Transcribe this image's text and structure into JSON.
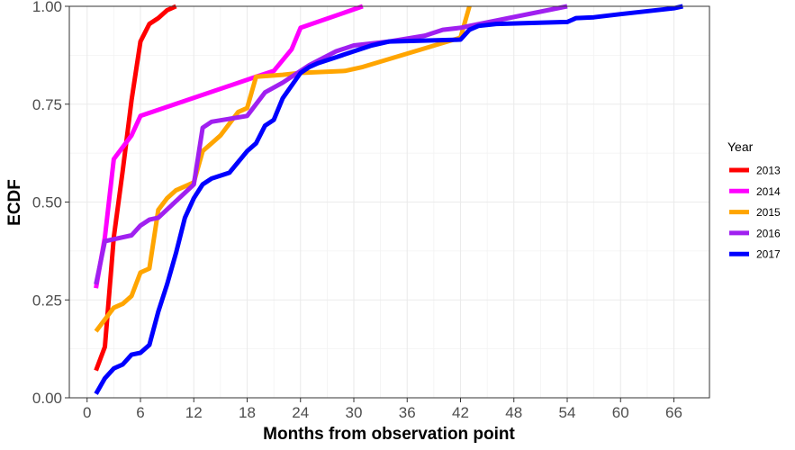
{
  "chart_data": {
    "type": "line",
    "title": "",
    "xlabel": "Months from observation point",
    "ylabel": "ECDF",
    "xlim": [
      -2,
      70
    ],
    "ylim": [
      0,
      1
    ],
    "x_ticks": [
      0,
      6,
      12,
      18,
      24,
      30,
      36,
      42,
      48,
      54,
      60,
      66
    ],
    "x_tick_labels": [
      "0",
      "6",
      "12",
      "18",
      "24",
      "30",
      "36",
      "42",
      "48",
      "54",
      "60",
      "66"
    ],
    "y_ticks": [
      0,
      0.25,
      0.5,
      0.75,
      1
    ],
    "y_tick_labels": [
      "0.00",
      "0.25",
      "0.50",
      "0.75",
      "1.00"
    ],
    "grid": true,
    "legend": {
      "title": "Year",
      "position": "right"
    },
    "series": [
      {
        "name": "2013",
        "color": "#ff0000",
        "points": [
          [
            1,
            0.07
          ],
          [
            2,
            0.13
          ],
          [
            3,
            0.41
          ],
          [
            4,
            0.58
          ],
          [
            5,
            0.76
          ],
          [
            6,
            0.91
          ],
          [
            7,
            0.955
          ],
          [
            8,
            0.97
          ],
          [
            9,
            0.99
          ],
          [
            10,
            1.0
          ]
        ]
      },
      {
        "name": "2014",
        "color": "#ff00ff",
        "points": [
          [
            1,
            0.28
          ],
          [
            2,
            0.41
          ],
          [
            3,
            0.61
          ],
          [
            5,
            0.67
          ],
          [
            6,
            0.72
          ],
          [
            19,
            0.82
          ],
          [
            21,
            0.835
          ],
          [
            23,
            0.89
          ],
          [
            24,
            0.945
          ],
          [
            31,
            1.0
          ]
        ]
      },
      {
        "name": "2015",
        "color": "#ffa500",
        "points": [
          [
            1,
            0.17
          ],
          [
            2,
            0.2
          ],
          [
            3,
            0.23
          ],
          [
            4,
            0.24
          ],
          [
            5,
            0.26
          ],
          [
            6,
            0.32
          ],
          [
            7,
            0.33
          ],
          [
            8,
            0.48
          ],
          [
            9,
            0.51
          ],
          [
            10,
            0.53
          ],
          [
            11,
            0.54
          ],
          [
            12,
            0.55
          ],
          [
            13,
            0.63
          ],
          [
            14,
            0.65
          ],
          [
            15,
            0.67
          ],
          [
            17,
            0.73
          ],
          [
            18,
            0.74
          ],
          [
            19,
            0.82
          ],
          [
            22,
            0.825
          ],
          [
            24,
            0.83
          ],
          [
            29,
            0.835
          ],
          [
            31,
            0.845
          ],
          [
            42,
            0.92
          ],
          [
            43,
            1.0
          ]
        ]
      },
      {
        "name": "2016",
        "color": "#a020f0",
        "points": [
          [
            1,
            0.29
          ],
          [
            2,
            0.4
          ],
          [
            5,
            0.415
          ],
          [
            6,
            0.44
          ],
          [
            7,
            0.455
          ],
          [
            8,
            0.46
          ],
          [
            12,
            0.545
          ],
          [
            13,
            0.69
          ],
          [
            14,
            0.705
          ],
          [
            18,
            0.72
          ],
          [
            20,
            0.78
          ],
          [
            22,
            0.805
          ],
          [
            25,
            0.85
          ],
          [
            28,
            0.885
          ],
          [
            30,
            0.9
          ],
          [
            34,
            0.91
          ],
          [
            38,
            0.925
          ],
          [
            40,
            0.94
          ],
          [
            42,
            0.945
          ],
          [
            43,
            0.95
          ],
          [
            54,
            1.0
          ]
        ]
      },
      {
        "name": "2017",
        "color": "#0000ff",
        "points": [
          [
            1,
            0.01
          ],
          [
            2,
            0.05
          ],
          [
            3,
            0.075
          ],
          [
            4,
            0.085
          ],
          [
            5,
            0.11
          ],
          [
            6,
            0.115
          ],
          [
            7,
            0.135
          ],
          [
            8,
            0.22
          ],
          [
            9,
            0.29
          ],
          [
            10,
            0.37
          ],
          [
            11,
            0.46
          ],
          [
            12,
            0.51
          ],
          [
            13,
            0.545
          ],
          [
            14,
            0.56
          ],
          [
            16,
            0.575
          ],
          [
            18,
            0.63
          ],
          [
            19,
            0.65
          ],
          [
            20,
            0.695
          ],
          [
            21,
            0.71
          ],
          [
            22,
            0.765
          ],
          [
            24,
            0.83
          ],
          [
            25,
            0.845
          ],
          [
            26,
            0.855
          ],
          [
            28,
            0.87
          ],
          [
            30,
            0.885
          ],
          [
            32,
            0.9
          ],
          [
            34,
            0.91
          ],
          [
            42,
            0.915
          ],
          [
            43,
            0.94
          ],
          [
            44,
            0.95
          ],
          [
            46,
            0.955
          ],
          [
            54,
            0.96
          ],
          [
            55,
            0.97
          ],
          [
            57,
            0.972
          ],
          [
            60,
            0.98
          ],
          [
            66,
            0.995
          ],
          [
            67,
            1.0
          ]
        ]
      }
    ]
  }
}
